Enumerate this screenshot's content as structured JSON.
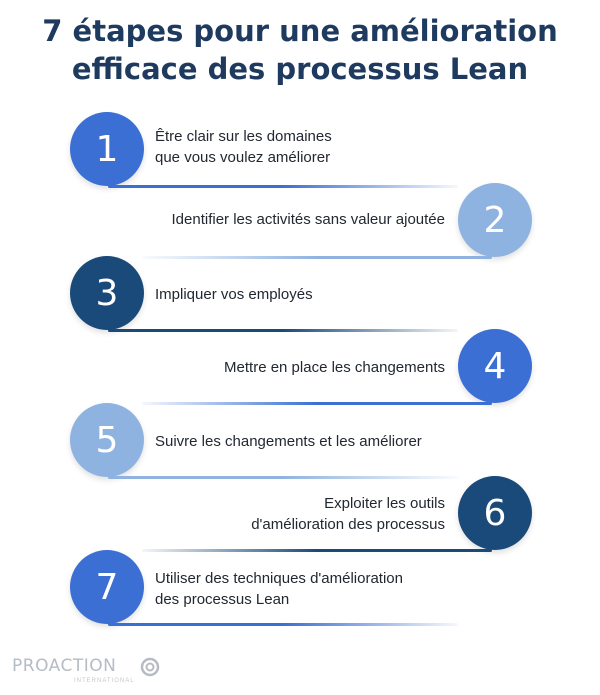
{
  "title": {
    "line1": "7 étapes pour une amélioration",
    "line2": "efficace des processus Lean"
  },
  "steps": [
    {
      "number": "1",
      "text_line1": "Être clair sur les domaines",
      "text_line2": "que vous voulez améliorer",
      "side": "left",
      "color": "#3b6fd4"
    },
    {
      "number": "2",
      "text_line1": "Identifier les activités sans valeur ajoutée",
      "text_line2": "",
      "side": "right",
      "color": "#8fb3e0"
    },
    {
      "number": "3",
      "text_line1": "Impliquer vos employés",
      "text_line2": "",
      "side": "left",
      "color": "#1a4a7a"
    },
    {
      "number": "4",
      "text_line1": "Mettre en place les changements",
      "text_line2": "",
      "side": "right",
      "color": "#3b6fd4"
    },
    {
      "number": "5",
      "text_line1": "Suivre les changements et les améliorer",
      "text_line2": "",
      "side": "left",
      "color": "#8fb3e0"
    },
    {
      "number": "6",
      "text_line1": "Exploiter les outils",
      "text_line2": "d'amélioration des processus",
      "side": "right",
      "color": "#1a4a7a"
    },
    {
      "number": "7",
      "text_line1": "Utiliser des techniques d'amélioration",
      "text_line2": "des processus Lean",
      "side": "left",
      "color": "#3b6fd4"
    }
  ],
  "logo": {
    "name": "PROACTION",
    "subtitle": "INTERNATIONAL"
  },
  "colors": {
    "title": "#1e3a5f",
    "line_strong": "#1a4a7a"
  }
}
